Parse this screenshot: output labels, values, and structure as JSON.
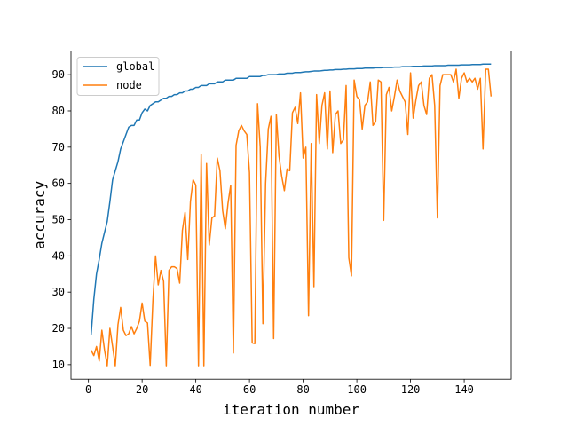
{
  "chart_data": {
    "type": "line",
    "xlabel": "iteration number",
    "ylabel": "accuracy",
    "xlim": [
      -6.5,
      157.5
    ],
    "ylim": [
      6.0,
      96.5
    ],
    "xticks": [
      0,
      20,
      40,
      60,
      80,
      100,
      120,
      140
    ],
    "yticks": [
      10,
      20,
      30,
      40,
      50,
      60,
      70,
      80,
      90
    ],
    "grid": false,
    "legend_position": "top-left",
    "x": [
      1,
      2,
      3,
      4,
      5,
      6,
      7,
      8,
      9,
      10,
      11,
      12,
      13,
      14,
      15,
      16,
      17,
      18,
      19,
      20,
      21,
      22,
      23,
      24,
      25,
      26,
      27,
      28,
      29,
      30,
      31,
      32,
      33,
      34,
      35,
      36,
      37,
      38,
      39,
      40,
      41,
      42,
      43,
      44,
      45,
      46,
      47,
      48,
      49,
      50,
      51,
      52,
      53,
      54,
      55,
      56,
      57,
      58,
      59,
      60,
      61,
      62,
      63,
      64,
      65,
      66,
      67,
      68,
      69,
      70,
      71,
      72,
      73,
      74,
      75,
      76,
      77,
      78,
      79,
      80,
      81,
      82,
      83,
      84,
      85,
      86,
      87,
      88,
      89,
      90,
      91,
      92,
      93,
      94,
      95,
      96,
      97,
      98,
      99,
      100,
      101,
      102,
      103,
      104,
      105,
      106,
      107,
      108,
      109,
      110,
      111,
      112,
      113,
      114,
      115,
      116,
      117,
      118,
      119,
      120,
      121,
      122,
      123,
      124,
      125,
      126,
      127,
      128,
      129,
      130,
      131,
      132,
      133,
      134,
      135,
      136,
      137,
      138,
      139,
      140,
      141,
      142,
      143,
      144,
      145,
      146,
      147,
      148,
      149,
      150
    ],
    "series": [
      {
        "name": "global",
        "color": "#1f77b4",
        "values": [
          18.3,
          28.0,
          35.0,
          39.0,
          43.5,
          46.5,
          49.5,
          55.0,
          61.0,
          63.5,
          66.0,
          69.5,
          71.5,
          73.5,
          75.5,
          76.0,
          76.0,
          77.5,
          77.5,
          79.5,
          80.5,
          80.0,
          81.5,
          82.0,
          82.5,
          82.5,
          83.0,
          83.5,
          83.5,
          84.0,
          84.0,
          84.5,
          84.5,
          85.0,
          85.0,
          85.5,
          85.5,
          86.0,
          86.0,
          86.5,
          86.5,
          87.0,
          87.0,
          87.0,
          87.5,
          87.5,
          87.5,
          88.0,
          88.0,
          88.0,
          88.5,
          88.5,
          88.5,
          88.5,
          89.0,
          89.0,
          89.0,
          89.0,
          89.0,
          89.5,
          89.5,
          89.5,
          89.5,
          89.5,
          89.8,
          89.8,
          90.0,
          90.0,
          90.0,
          90.0,
          90.2,
          90.2,
          90.2,
          90.4,
          90.4,
          90.4,
          90.6,
          90.6,
          90.6,
          90.7,
          90.8,
          90.8,
          90.9,
          91.0,
          91.0,
          91.0,
          91.1,
          91.2,
          91.2,
          91.3,
          91.3,
          91.4,
          91.4,
          91.4,
          91.5,
          91.5,
          91.6,
          91.6,
          91.6,
          91.7,
          91.7,
          91.7,
          91.8,
          91.8,
          91.8,
          91.8,
          91.9,
          91.9,
          91.9,
          92.0,
          92.0,
          92.0,
          92.0,
          92.1,
          92.1,
          92.1,
          92.2,
          92.2,
          92.2,
          92.2,
          92.3,
          92.3,
          92.3,
          92.3,
          92.4,
          92.4,
          92.4,
          92.4,
          92.5,
          92.5,
          92.5,
          92.5,
          92.5,
          92.6,
          92.6,
          92.6,
          92.6,
          92.6,
          92.7,
          92.7,
          92.7,
          92.7,
          92.8,
          92.8,
          92.8,
          92.8,
          92.9,
          92.9,
          92.9,
          92.9
        ]
      },
      {
        "name": "node",
        "color": "#ff7f0e",
        "values": [
          14.0,
          12.5,
          15.0,
          11.0,
          19.5,
          14.0,
          9.7,
          20.0,
          15.0,
          9.7,
          21.0,
          25.8,
          19.5,
          18.0,
          18.5,
          20.5,
          18.5,
          20.0,
          22.0,
          27.0,
          22.0,
          21.5,
          9.8,
          27.5,
          40.0,
          32.0,
          36.0,
          33.0,
          9.7,
          36.0,
          37.0,
          37.0,
          36.5,
          32.5,
          47.0,
          52.0,
          39.0,
          55.0,
          61.0,
          59.5,
          9.7,
          68.0,
          9.7,
          65.5,
          43.0,
          50.5,
          51.0,
          67.0,
          63.5,
          52.5,
          47.5,
          54.5,
          59.5,
          13.2,
          70.5,
          74.5,
          76.0,
          74.5,
          73.5,
          63.0,
          16.0,
          15.8,
          82.0,
          70.0,
          21.3,
          60.0,
          75.0,
          78.5,
          17.2,
          79.0,
          67.5,
          62.0,
          58.0,
          64.0,
          63.5,
          79.5,
          81.0,
          76.5,
          85.0,
          67.0,
          70.0,
          23.5,
          71.0,
          31.5,
          84.5,
          71.0,
          81.5,
          85.0,
          69.5,
          85.5,
          68.5,
          79.0,
          80.0,
          71.0,
          72.0,
          87.0,
          39.5,
          34.5,
          88.5,
          84.0,
          83.0,
          75.0,
          81.5,
          82.5,
          88.0,
          76.0,
          77.0,
          88.5,
          88.0,
          49.8,
          84.5,
          86.5,
          80.0,
          84.0,
          88.5,
          85.5,
          84.0,
          82.5,
          73.5,
          90.5,
          78.0,
          83.0,
          87.0,
          88.0,
          81.5,
          79.0,
          89.0,
          90.0,
          81.5,
          50.5,
          87.0,
          90.0,
          90.0,
          90.0,
          90.0,
          88.0,
          91.5,
          83.5,
          89.0,
          90.5,
          88.0,
          89.0,
          88.0,
          89.0,
          86.0,
          89.0,
          69.5,
          91.5,
          91.5,
          84.0
        ]
      }
    ]
  }
}
